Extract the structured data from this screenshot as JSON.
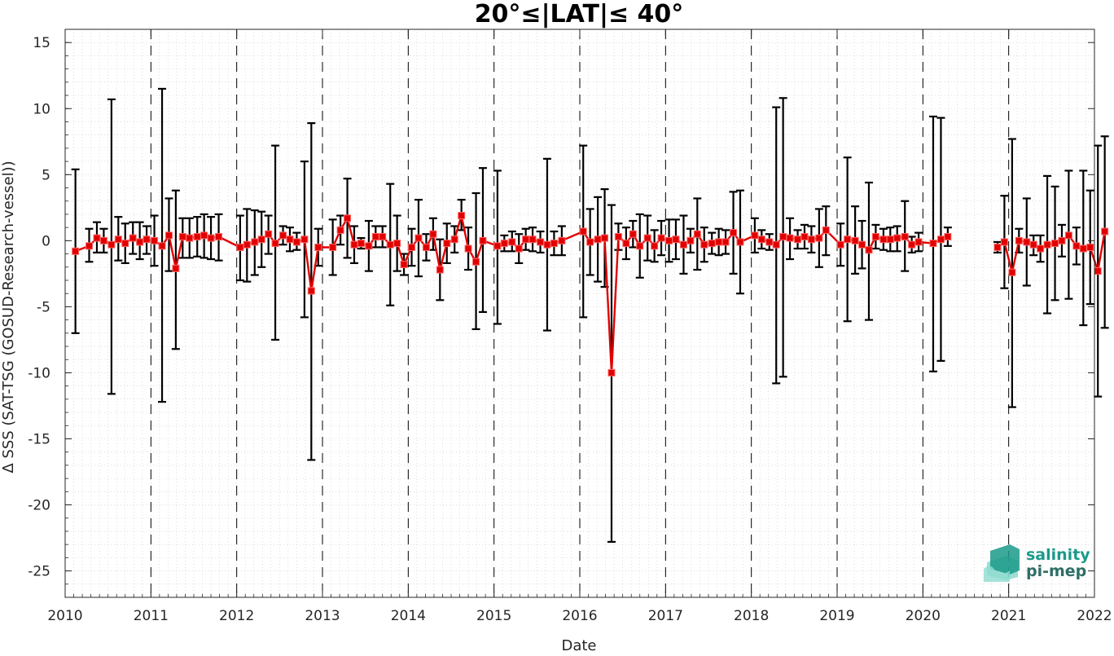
{
  "chart_data": {
    "type": "line",
    "title": "20°≤|LAT|≤ 40°",
    "xlabel": "Date",
    "ylabel": "Δ SSS (SAT-TSG (GOSUD-Research-vessel))",
    "xlim": [
      2010,
      2022
    ],
    "ylim": [
      -27,
      16
    ],
    "x_ticks": [
      "2010",
      "2011",
      "2012",
      "2013",
      "2014",
      "2015",
      "2016",
      "2017",
      "2018",
      "2019",
      "2020",
      "2021",
      "2022"
    ],
    "y_ticks": [
      "15",
      "10",
      "5",
      "0",
      "-5",
      "-10",
      "-15",
      "-20",
      "-25"
    ],
    "grid": "minor dotted",
    "year_separators": "dashed vertical lines at each year",
    "series": [
      {
        "color": "#e00000",
        "marker": "square",
        "error_bar_color": "#000000",
        "points": [
          {
            "x": 2010.12,
            "y": -0.8,
            "lo": -7.0,
            "hi": 5.4
          },
          {
            "x": 2010.28,
            "y": -0.4,
            "lo": -1.6,
            "hi": 0.9
          },
          {
            "x": 2010.37,
            "y": 0.2,
            "lo": -0.9,
            "hi": 1.4
          },
          {
            "x": 2010.45,
            "y": 0.0,
            "lo": -0.9,
            "hi": 0.9
          },
          {
            "x": 2010.54,
            "y": -0.3,
            "lo": -11.6,
            "hi": 10.7
          },
          {
            "x": 2010.62,
            "y": 0.1,
            "lo": -1.5,
            "hi": 1.8
          },
          {
            "x": 2010.7,
            "y": -0.2,
            "lo": -1.7,
            "hi": 1.3
          },
          {
            "x": 2010.79,
            "y": 0.2,
            "lo": -1.0,
            "hi": 1.4
          },
          {
            "x": 2010.87,
            "y": -0.1,
            "lo": -1.4,
            "hi": 1.4
          },
          {
            "x": 2010.95,
            "y": 0.1,
            "lo": -1.0,
            "hi": 1.1
          },
          {
            "x": 2011.04,
            "y": 0.0,
            "lo": -1.9,
            "hi": 1.9
          },
          {
            "x": 2011.13,
            "y": -0.4,
            "lo": -12.2,
            "hi": 11.5
          },
          {
            "x": 2011.21,
            "y": 0.4,
            "lo": -2.3,
            "hi": 3.2
          },
          {
            "x": 2011.29,
            "y": -2.1,
            "lo": -8.2,
            "hi": 3.8
          },
          {
            "x": 2011.37,
            "y": 0.3,
            "lo": -1.3,
            "hi": 1.7
          },
          {
            "x": 2011.45,
            "y": 0.2,
            "lo": -1.3,
            "hi": 1.7
          },
          {
            "x": 2011.54,
            "y": 0.3,
            "lo": -1.2,
            "hi": 1.8
          },
          {
            "x": 2011.62,
            "y": 0.4,
            "lo": -1.3,
            "hi": 2.0
          },
          {
            "x": 2011.7,
            "y": 0.2,
            "lo": -1.4,
            "hi": 1.8
          },
          {
            "x": 2011.79,
            "y": 0.3,
            "lo": -1.5,
            "hi": 2.0
          },
          {
            "x": 2012.04,
            "y": -0.5,
            "lo": -3.0,
            "hi": 1.9
          },
          {
            "x": 2012.12,
            "y": -0.3,
            "lo": -3.1,
            "hi": 2.4
          },
          {
            "x": 2012.21,
            "y": -0.1,
            "lo": -2.6,
            "hi": 2.3
          },
          {
            "x": 2012.29,
            "y": 0.1,
            "lo": -2.0,
            "hi": 2.2
          },
          {
            "x": 2012.37,
            "y": 0.5,
            "lo": -1.0,
            "hi": 1.9
          },
          {
            "x": 2012.45,
            "y": -0.2,
            "lo": -7.5,
            "hi": 7.2
          },
          {
            "x": 2012.54,
            "y": 0.4,
            "lo": -0.3,
            "hi": 1.1
          },
          {
            "x": 2012.62,
            "y": 0.1,
            "lo": -0.8,
            "hi": 1.0
          },
          {
            "x": 2012.7,
            "y": -0.1,
            "lo": -0.7,
            "hi": 0.6
          },
          {
            "x": 2012.79,
            "y": 0.1,
            "lo": -5.8,
            "hi": 6.0
          },
          {
            "x": 2012.87,
            "y": -3.8,
            "lo": -16.6,
            "hi": 8.9
          },
          {
            "x": 2012.95,
            "y": -0.5,
            "lo": -1.9,
            "hi": 0.9
          },
          {
            "x": 2013.12,
            "y": -0.5,
            "lo": -2.6,
            "hi": 1.6
          },
          {
            "x": 2013.21,
            "y": 0.8,
            "lo": -0.3,
            "hi": 1.9
          },
          {
            "x": 2013.29,
            "y": 1.7,
            "lo": -1.3,
            "hi": 4.7
          },
          {
            "x": 2013.37,
            "y": -0.3,
            "lo": -1.7,
            "hi": 1.1
          },
          {
            "x": 2013.45,
            "y": -0.2,
            "lo": -0.6,
            "hi": 0.2
          },
          {
            "x": 2013.54,
            "y": -0.4,
            "lo": -2.3,
            "hi": 1.5
          },
          {
            "x": 2013.62,
            "y": 0.3,
            "lo": -0.5,
            "hi": 1.1
          },
          {
            "x": 2013.7,
            "y": 0.3,
            "lo": -0.5,
            "hi": 1.1
          },
          {
            "x": 2013.79,
            "y": -0.3,
            "lo": -4.9,
            "hi": 4.3
          },
          {
            "x": 2013.87,
            "y": -0.2,
            "lo": -2.3,
            "hi": 1.9
          },
          {
            "x": 2013.95,
            "y": -1.8,
            "lo": -2.6,
            "hi": -1.0
          },
          {
            "x": 2014.04,
            "y": -0.5,
            "lo": -1.9,
            "hi": 0.9
          },
          {
            "x": 2014.12,
            "y": 0.2,
            "lo": -2.7,
            "hi": 3.1
          },
          {
            "x": 2014.21,
            "y": -0.5,
            "lo": -1.5,
            "hi": 0.5
          },
          {
            "x": 2014.29,
            "y": 0.5,
            "lo": -0.7,
            "hi": 1.7
          },
          {
            "x": 2014.37,
            "y": -2.2,
            "lo": -4.5,
            "hi": 0.1
          },
          {
            "x": 2014.45,
            "y": -0.2,
            "lo": -1.7,
            "hi": 1.3
          },
          {
            "x": 2014.54,
            "y": 0.1,
            "lo": -0.9,
            "hi": 1.1
          },
          {
            "x": 2014.62,
            "y": 1.9,
            "lo": 0.8,
            "hi": 3.1
          },
          {
            "x": 2014.7,
            "y": -0.6,
            "lo": -2.2,
            "hi": 1.0
          },
          {
            "x": 2014.79,
            "y": -1.6,
            "lo": -6.7,
            "hi": 3.6
          },
          {
            "x": 2014.87,
            "y": 0.0,
            "lo": -5.4,
            "hi": 5.5
          },
          {
            "x": 2015.04,
            "y": -0.4,
            "lo": -6.3,
            "hi": 5.3
          },
          {
            "x": 2015.12,
            "y": -0.2,
            "lo": -0.8,
            "hi": 0.4
          },
          {
            "x": 2015.21,
            "y": -0.1,
            "lo": -0.8,
            "hi": 0.7
          },
          {
            "x": 2015.29,
            "y": -0.6,
            "lo": -1.7,
            "hi": 0.5
          },
          {
            "x": 2015.37,
            "y": 0.1,
            "lo": -0.7,
            "hi": 0.9
          },
          {
            "x": 2015.45,
            "y": 0.1,
            "lo": -0.8,
            "hi": 1.0
          },
          {
            "x": 2015.54,
            "y": -0.1,
            "lo": -0.9,
            "hi": 0.7
          },
          {
            "x": 2015.62,
            "y": -0.3,
            "lo": -6.8,
            "hi": 6.2
          },
          {
            "x": 2015.7,
            "y": -0.2,
            "lo": -1.1,
            "hi": 0.7
          },
          {
            "x": 2015.79,
            "y": 0.0,
            "lo": -1.1,
            "hi": 1.1
          },
          {
            "x": 2016.04,
            "y": 0.7,
            "lo": -5.8,
            "hi": 7.2
          },
          {
            "x": 2016.12,
            "y": -0.1,
            "lo": -2.6,
            "hi": 2.4
          },
          {
            "x": 2016.21,
            "y": 0.1,
            "lo": -3.1,
            "hi": 3.3
          },
          {
            "x": 2016.29,
            "y": 0.2,
            "lo": -3.5,
            "hi": 3.9
          },
          {
            "x": 2016.37,
            "y": -10.0,
            "lo": -22.8,
            "hi": 2.7
          },
          {
            "x": 2016.45,
            "y": 0.3,
            "lo": -0.7,
            "hi": 1.3
          },
          {
            "x": 2016.54,
            "y": -0.2,
            "lo": -1.4,
            "hi": 1.0
          },
          {
            "x": 2016.62,
            "y": 0.5,
            "lo": -0.5,
            "hi": 1.5
          },
          {
            "x": 2016.7,
            "y": -0.4,
            "lo": -2.8,
            "hi": 2.0
          },
          {
            "x": 2016.79,
            "y": 0.2,
            "lo": -1.5,
            "hi": 1.9
          },
          {
            "x": 2016.87,
            "y": -0.4,
            "lo": -1.6,
            "hi": 0.8
          },
          {
            "x": 2016.95,
            "y": 0.2,
            "lo": -1.1,
            "hi": 1.5
          },
          {
            "x": 2017.04,
            "y": 0.0,
            "lo": -1.6,
            "hi": 1.6
          },
          {
            "x": 2017.12,
            "y": 0.1,
            "lo": -1.4,
            "hi": 1.6
          },
          {
            "x": 2017.21,
            "y": -0.3,
            "lo": -2.5,
            "hi": 1.9
          },
          {
            "x": 2017.29,
            "y": 0.0,
            "lo": -0.9,
            "hi": 0.9
          },
          {
            "x": 2017.37,
            "y": 0.5,
            "lo": -2.2,
            "hi": 3.2
          },
          {
            "x": 2017.45,
            "y": -0.3,
            "lo": -1.6,
            "hi": 1.0
          },
          {
            "x": 2017.54,
            "y": -0.2,
            "lo": -1.0,
            "hi": 0.6
          },
          {
            "x": 2017.62,
            "y": -0.1,
            "lo": -1.1,
            "hi": 0.9
          },
          {
            "x": 2017.7,
            "y": -0.1,
            "lo": -1.0,
            "hi": 0.8
          },
          {
            "x": 2017.79,
            "y": 0.6,
            "lo": -2.5,
            "hi": 3.7
          },
          {
            "x": 2017.87,
            "y": -0.1,
            "lo": -4.0,
            "hi": 3.8
          },
          {
            "x": 2018.04,
            "y": 0.4,
            "lo": -0.9,
            "hi": 1.7
          },
          {
            "x": 2018.12,
            "y": 0.1,
            "lo": -0.6,
            "hi": 0.8
          },
          {
            "x": 2018.21,
            "y": -0.1,
            "lo": -0.7,
            "hi": 0.5
          },
          {
            "x": 2018.29,
            "y": -0.3,
            "lo": -10.8,
            "hi": 10.1
          },
          {
            "x": 2018.37,
            "y": 0.3,
            "lo": -10.3,
            "hi": 10.8
          },
          {
            "x": 2018.45,
            "y": 0.2,
            "lo": -1.4,
            "hi": 1.7
          },
          {
            "x": 2018.54,
            "y": 0.1,
            "lo": -0.6,
            "hi": 0.8
          },
          {
            "x": 2018.62,
            "y": 0.3,
            "lo": -0.6,
            "hi": 1.2
          },
          {
            "x": 2018.7,
            "y": 0.1,
            "lo": -0.9,
            "hi": 1.1
          },
          {
            "x": 2018.79,
            "y": 0.2,
            "lo": -2.0,
            "hi": 2.4
          },
          {
            "x": 2018.87,
            "y": 0.8,
            "lo": -1.1,
            "hi": 2.6
          },
          {
            "x": 2019.04,
            "y": -0.3,
            "lo": -1.9,
            "hi": 1.3
          },
          {
            "x": 2019.12,
            "y": 0.1,
            "lo": -6.1,
            "hi": 6.3
          },
          {
            "x": 2019.21,
            "y": 0.0,
            "lo": -2.5,
            "hi": 2.6
          },
          {
            "x": 2019.29,
            "y": -0.3,
            "lo": -2.1,
            "hi": 1.5
          },
          {
            "x": 2019.37,
            "y": -0.7,
            "lo": -6.0,
            "hi": 4.4
          },
          {
            "x": 2019.45,
            "y": 0.3,
            "lo": -0.6,
            "hi": 1.2
          },
          {
            "x": 2019.54,
            "y": 0.1,
            "lo": -0.7,
            "hi": 0.9
          },
          {
            "x": 2019.62,
            "y": 0.1,
            "lo": -0.8,
            "hi": 1.0
          },
          {
            "x": 2019.7,
            "y": 0.2,
            "lo": -0.8,
            "hi": 1.1
          },
          {
            "x": 2019.79,
            "y": 0.3,
            "lo": -2.3,
            "hi": 3.0
          },
          {
            "x": 2019.87,
            "y": -0.3,
            "lo": -0.9,
            "hi": 0.3
          },
          {
            "x": 2019.95,
            "y": -0.1,
            "lo": -0.8,
            "hi": 0.6
          },
          {
            "x": 2020.12,
            "y": -0.2,
            "lo": -9.9,
            "hi": 9.4
          },
          {
            "x": 2020.21,
            "y": 0.1,
            "lo": -9.1,
            "hi": 9.3
          },
          {
            "x": 2020.29,
            "y": 0.3,
            "lo": -0.4,
            "hi": 1.0
          },
          {
            "x": 2020.87,
            "y": -0.5,
            "lo": -0.9,
            "hi": -0.1
          },
          {
            "x": 2020.95,
            "y": -0.1,
            "lo": -3.6,
            "hi": 3.4
          },
          {
            "x": 2021.04,
            "y": -2.4,
            "lo": -12.6,
            "hi": 7.7
          },
          {
            "x": 2021.12,
            "y": 0.0,
            "lo": -0.9,
            "hi": 0.9
          },
          {
            "x": 2021.21,
            "y": -0.1,
            "lo": -3.4,
            "hi": 3.2
          },
          {
            "x": 2021.29,
            "y": -0.3,
            "lo": -1.1,
            "hi": 0.4
          },
          {
            "x": 2021.37,
            "y": -0.6,
            "lo": -1.6,
            "hi": 0.4
          },
          {
            "x": 2021.45,
            "y": -0.3,
            "lo": -5.5,
            "hi": 4.9
          },
          {
            "x": 2021.54,
            "y": -0.2,
            "lo": -4.5,
            "hi": 4.1
          },
          {
            "x": 2021.62,
            "y": 0.0,
            "lo": -1.2,
            "hi": 1.2
          },
          {
            "x": 2021.7,
            "y": 0.4,
            "lo": -4.4,
            "hi": 5.3
          },
          {
            "x": 2021.79,
            "y": -0.4,
            "lo": -1.8,
            "hi": 1.0
          },
          {
            "x": 2021.87,
            "y": -0.6,
            "lo": -6.4,
            "hi": 5.3
          },
          {
            "x": 2021.95,
            "y": -0.5,
            "lo": -4.8,
            "hi": 3.8
          },
          {
            "x": 2022.04,
            "y": -2.3,
            "lo": -11.8,
            "hi": 7.2
          },
          {
            "x": 2022.12,
            "y": 0.7,
            "lo": -6.6,
            "hi": 7.9
          }
        ]
      }
    ]
  },
  "logo": {
    "line1": "salinity",
    "line2": "pi-mep",
    "color_main": "#1a9a8a",
    "color_secondary": "#2d6e66"
  },
  "colors": {
    "axis": "#262626",
    "grid": "#c8c8c8",
    "series": "#e00000",
    "error_bar": "#000000"
  }
}
